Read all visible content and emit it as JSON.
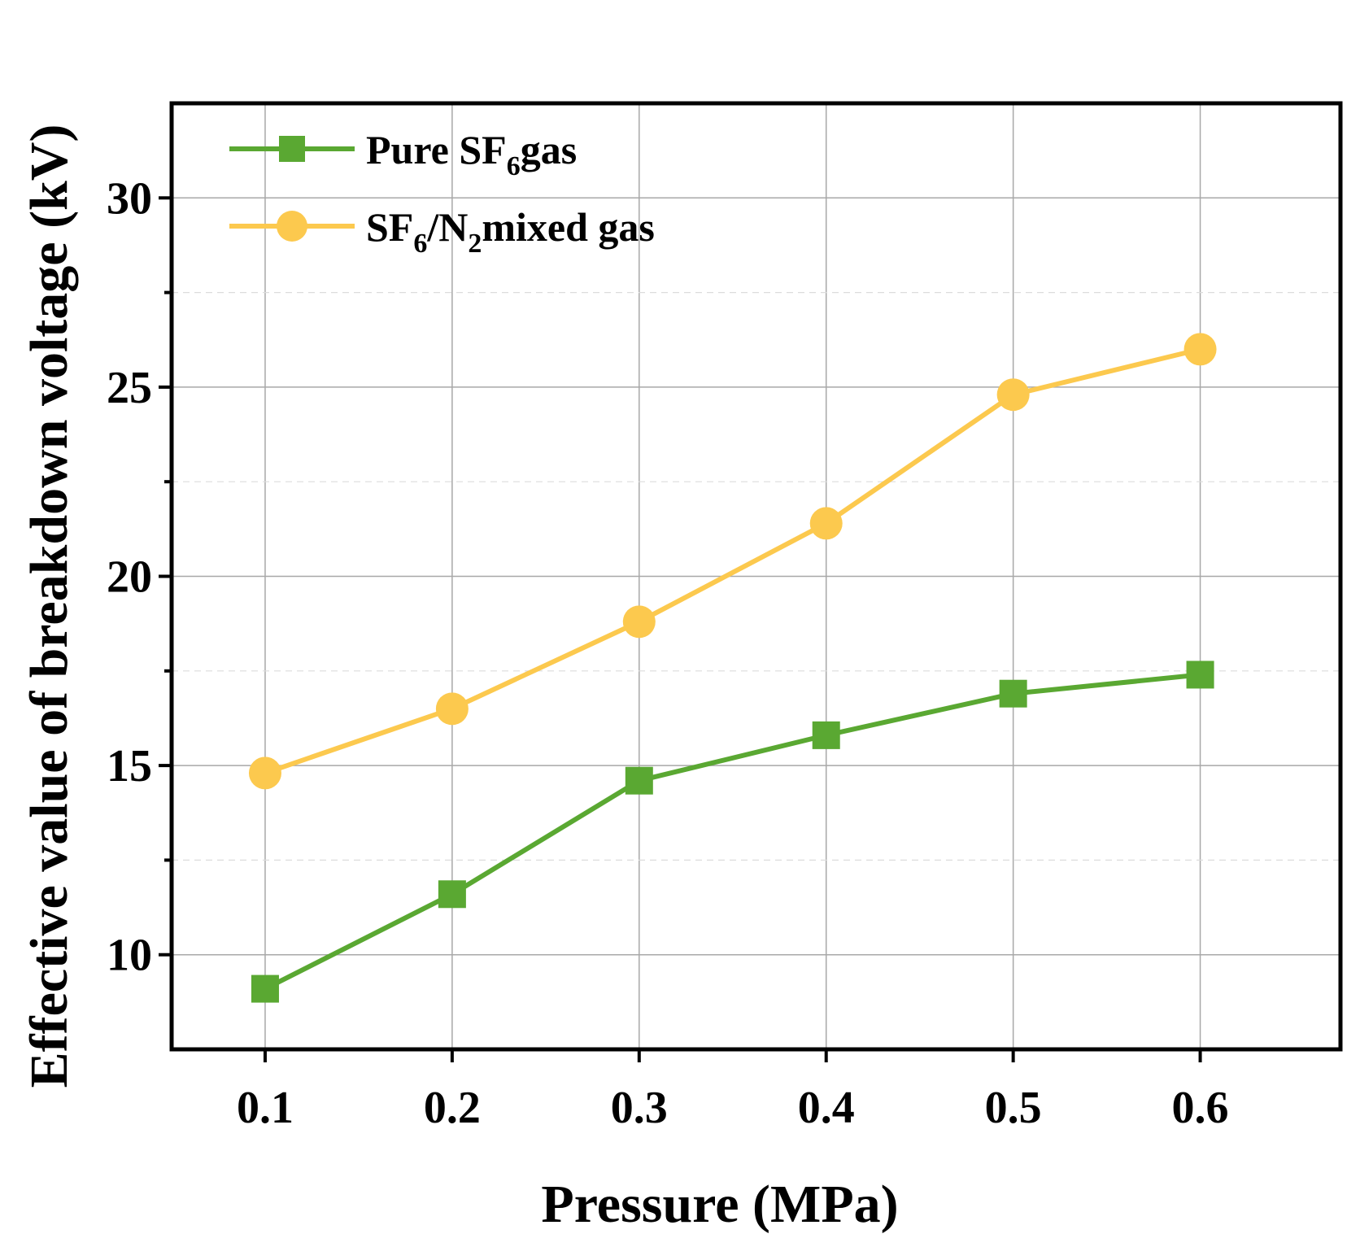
{
  "chart_data": {
    "type": "line",
    "title": "",
    "xlabel": "Pressure (MPa)",
    "ylabel": "Effective value of breakdown voltage (kV)",
    "x": [
      0.1,
      0.2,
      0.3,
      0.4,
      0.5,
      0.6
    ],
    "x_tick_labels": [
      "0.1",
      "0.2",
      "0.3",
      "0.4",
      "0.5",
      "0.6"
    ],
    "xlim": [
      0.05,
      0.675
    ],
    "ylim": [
      7.5,
      32.5
    ],
    "y_ticks": [
      10,
      15,
      20,
      25,
      30
    ],
    "y_tick_labels": [
      "10",
      "15",
      "20",
      "25",
      "30"
    ],
    "y_minor_ticks": [
      12.5,
      17.5,
      22.5,
      27.5
    ],
    "grid": true,
    "legend_position": "top-left",
    "series": [
      {
        "name": "Pure SF6gas",
        "legend_parts": {
          "pre": "Pure SF",
          "sub": "6",
          "post": "gas"
        },
        "marker": "square",
        "color": "#5aa832",
        "values": [
          9.1,
          11.6,
          14.6,
          15.8,
          16.9,
          17.4
        ]
      },
      {
        "name": "SF6/N2mixed gas",
        "legend_parts": {
          "pre": "SF",
          "sub": "6",
          "mid": "/N",
          "sub2": "2",
          "post": "mixed gas"
        },
        "marker": "circle",
        "color": "#fcc94e",
        "values": [
          14.8,
          16.5,
          18.8,
          21.4,
          24.8,
          26.0
        ]
      }
    ]
  }
}
